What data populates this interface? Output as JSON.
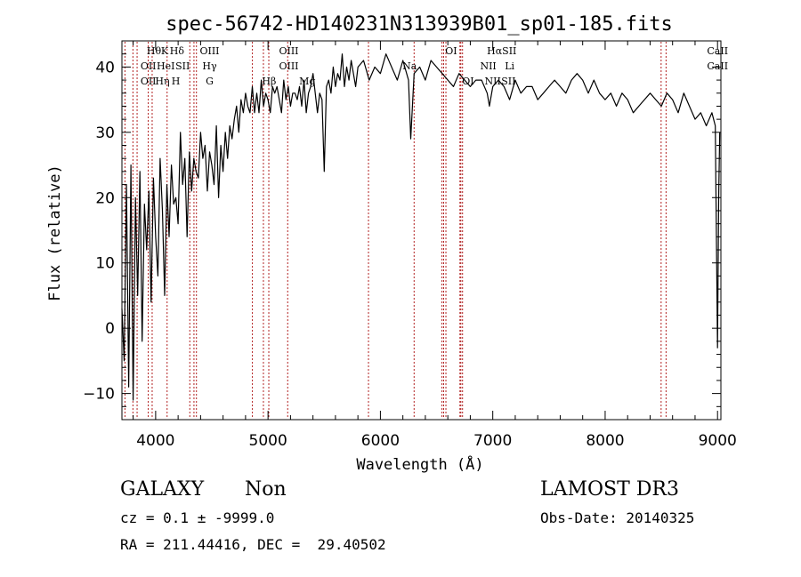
{
  "chart_data": {
    "type": "line",
    "title": "spec-56742-HD140231N313939B01_sp01-185.fits",
    "xlabel": "Wavelength (Å)",
    "ylabel": "Flux (relative)",
    "xlim": [
      3700,
      9030
    ],
    "ylim": [
      -14,
      44
    ],
    "xticks": [
      4000,
      5000,
      6000,
      7000,
      8000,
      9000
    ],
    "yticks": [
      -10,
      0,
      10,
      20,
      30,
      40
    ],
    "series": [
      {
        "name": "flux",
        "x": [
          3700,
          3720,
          3740,
          3760,
          3780,
          3800,
          3820,
          3840,
          3860,
          3880,
          3900,
          3920,
          3940,
          3960,
          3980,
          4000,
          4020,
          4040,
          4060,
          4080,
          4100,
          4120,
          4140,
          4160,
          4180,
          4200,
          4220,
          4240,
          4260,
          4280,
          4300,
          4320,
          4340,
          4360,
          4380,
          4400,
          4420,
          4440,
          4460,
          4480,
          4500,
          4520,
          4540,
          4560,
          4580,
          4600,
          4620,
          4640,
          4660,
          4680,
          4700,
          4720,
          4740,
          4760,
          4780,
          4800,
          4820,
          4840,
          4860,
          4880,
          4900,
          4920,
          4940,
          4960,
          4980,
          5000,
          5020,
          5040,
          5060,
          5080,
          5100,
          5120,
          5140,
          5160,
          5180,
          5200,
          5220,
          5240,
          5260,
          5280,
          5300,
          5320,
          5340,
          5360,
          5380,
          5400,
          5420,
          5440,
          5460,
          5480,
          5500,
          5520,
          5540,
          5560,
          5580,
          5600,
          5620,
          5640,
          5660,
          5680,
          5700,
          5720,
          5740,
          5760,
          5780,
          5800,
          5850,
          5900,
          5950,
          6000,
          6050,
          6100,
          6150,
          6200,
          6250,
          6270,
          6300,
          6350,
          6400,
          6450,
          6500,
          6550,
          6600,
          6650,
          6700,
          6750,
          6800,
          6850,
          6900,
          6950,
          6970,
          7000,
          7050,
          7100,
          7150,
          7200,
          7250,
          7300,
          7350,
          7400,
          7450,
          7500,
          7550,
          7600,
          7650,
          7700,
          7750,
          7800,
          7850,
          7900,
          7950,
          8000,
          8050,
          8100,
          8150,
          8200,
          8250,
          8300,
          8350,
          8400,
          8450,
          8500,
          8550,
          8600,
          8650,
          8700,
          8750,
          8800,
          8850,
          8900,
          8950,
          8980,
          9000,
          9010,
          9020
        ],
        "y": [
          3,
          -5,
          22,
          -9,
          25,
          -11,
          20,
          5,
          24,
          -2,
          19,
          12,
          21,
          4,
          23,
          14,
          8,
          26,
          18,
          5,
          22,
          14,
          25,
          19,
          20,
          16,
          30,
          22,
          26,
          14,
          27,
          21,
          26,
          24,
          23,
          30,
          26,
          28,
          21,
          27,
          25,
          22,
          31,
          20,
          28,
          24,
          30,
          26,
          31,
          29,
          32,
          34,
          30,
          35,
          33,
          36,
          34,
          33,
          37,
          33,
          36,
          33,
          38,
          34,
          36,
          35,
          33,
          37,
          36,
          37,
          35,
          33,
          38,
          35,
          37,
          34,
          36,
          36,
          35,
          37,
          34,
          38,
          33,
          36,
          37,
          39,
          36,
          33,
          36,
          35,
          24,
          37,
          38,
          36,
          40,
          37,
          39,
          38,
          42,
          37,
          40,
          38,
          41,
          39,
          37,
          40,
          41,
          38,
          40,
          39,
          42,
          40,
          38,
          41,
          38,
          29,
          39,
          40,
          38,
          41,
          40,
          39,
          38,
          37,
          39,
          38,
          37,
          38,
          38,
          36,
          34,
          37,
          38,
          37,
          35,
          38,
          36,
          37,
          37,
          35,
          36,
          37,
          38,
          37,
          36,
          38,
          39,
          38,
          36,
          38,
          36,
          35,
          36,
          34,
          36,
          35,
          33,
          34,
          35,
          36,
          35,
          34,
          36,
          35,
          33,
          36,
          34,
          32,
          33,
          31,
          33,
          31,
          -3,
          20,
          30
        ]
      }
    ],
    "lines": [
      {
        "label": "OII",
        "wave": 3727
      },
      {
        "label": "Hθ",
        "wave": 3798
      },
      {
        "label": "Hη",
        "wave": 3835
      },
      {
        "label": "K",
        "wave": 3934
      },
      {
        "label": "H",
        "wave": 3969
      },
      {
        "label": "Hδ",
        "wave": 4102
      },
      {
        "label": "G",
        "wave": 4304
      },
      {
        "label": "Hγ",
        "wave": 4341
      },
      {
        "label": "OIII",
        "wave": 4363
      },
      {
        "label": "Hβ",
        "wave": 4861
      },
      {
        "label": "OIII",
        "wave": 4959
      },
      {
        "label": "OIII",
        "wave": 5007
      },
      {
        "label": "Mg",
        "wave": 5175
      },
      {
        "label": "Na",
        "wave": 5894
      },
      {
        "label": "OI",
        "wave": 6300
      },
      {
        "label": "NII",
        "wave": 6548
      },
      {
        "label": "Hα",
        "wave": 6563
      },
      {
        "label": "NII",
        "wave": 6583
      },
      {
        "label": "Li",
        "wave": 6708
      },
      {
        "label": "SII",
        "wave": 6716
      },
      {
        "label": "SII",
        "wave": 6731
      },
      {
        "label": "CaII",
        "wave": 8498
      },
      {
        "label": "CaII",
        "wave": 8542
      }
    ],
    "line_labels": [
      {
        "text": "Hθ",
        "x": 3985,
        "row": 1
      },
      {
        "text": "K",
        "x": 4080,
        "row": 1
      },
      {
        "text": "Hδ",
        "x": 4190,
        "row": 1
      },
      {
        "text": "OIII",
        "x": 4480,
        "row": 1
      },
      {
        "text": "OIII",
        "x": 5185,
        "row": 1
      },
      {
        "text": "OI",
        "x": 6630,
        "row": 1
      },
      {
        "text": "HαSII",
        "x": 7080,
        "row": 1
      },
      {
        "text": "CaII",
        "x": 9000,
        "row": 1
      },
      {
        "text": "OII",
        "x": 3935,
        "row": 2
      },
      {
        "text": "HeI",
        "x": 4090,
        "row": 2
      },
      {
        "text": "SII",
        "x": 4240,
        "row": 2
      },
      {
        "text": "Hγ",
        "x": 4480,
        "row": 2
      },
      {
        "text": "OIII",
        "x": 5185,
        "row": 2
      },
      {
        "text": "Na",
        "x": 6260,
        "row": 2
      },
      {
        "text": "NII",
        "x": 6960,
        "row": 2
      },
      {
        "text": "Li",
        "x": 7150,
        "row": 2
      },
      {
        "text": "CaII",
        "x": 9000,
        "row": 2
      },
      {
        "text": "OII",
        "x": 3935,
        "row": 3
      },
      {
        "text": "Hη",
        "x": 4060,
        "row": 3
      },
      {
        "text": "H",
        "x": 4180,
        "row": 3
      },
      {
        "text": "G",
        "x": 4480,
        "row": 3
      },
      {
        "text": "Hβ",
        "x": 5010,
        "row": 3
      },
      {
        "text": "Mg",
        "x": 5350,
        "row": 3
      },
      {
        "text": "OI",
        "x": 6780,
        "row": 3
      },
      {
        "text": "NII",
        "x": 7000,
        "row": 3
      },
      {
        "text": "SII",
        "x": 7140,
        "row": 3
      }
    ],
    "colors": {
      "axes": "#000000",
      "spectrum": "#000000",
      "line_markers": "#b22222"
    }
  },
  "info": {
    "object_class": "GALAXY",
    "subclass": "Non",
    "survey": "LAMOST DR3",
    "cz_text": "cz = 0.1 ± -9999.0",
    "obs_date_text": "Obs-Date: 20140325",
    "coords_text": "RA = 211.44416, DEC =  29.40502"
  }
}
